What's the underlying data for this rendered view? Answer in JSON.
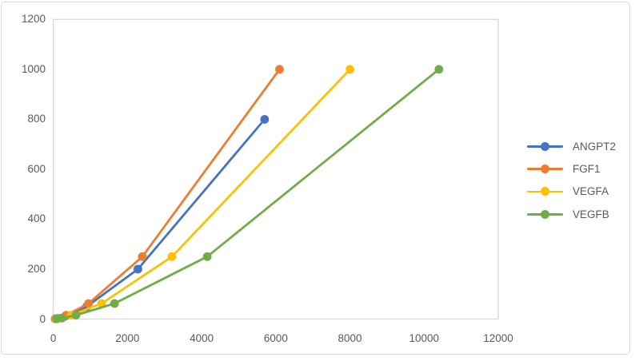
{
  "colors": {
    "chart_border": "#d9d9d9",
    "plot_border": "#d9d9d9",
    "tick_label": "#595959",
    "background": "#ffffff"
  },
  "legend": {
    "position": "right",
    "items": [
      "ANGPT2",
      "FGF1",
      "VEGFA",
      "VEGFB"
    ]
  },
  "chart_data": {
    "type": "line",
    "title": "",
    "xlabel": "",
    "ylabel": "",
    "xlim": [
      0,
      12000
    ],
    "ylim": [
      0,
      1200
    ],
    "x_ticks": [
      "0",
      "2000",
      "4000",
      "6000",
      "8000",
      "10000",
      "12000"
    ],
    "y_ticks": [
      "0",
      "200",
      "400",
      "600",
      "800",
      "1000",
      "1200"
    ],
    "grid": false,
    "legend_position": "right",
    "marker": "circle",
    "series": [
      {
        "name": "ANGPT2",
        "color": "#4472C4",
        "points": [
          [
            50,
            0.8
          ],
          [
            130,
            3.1
          ],
          [
            330,
            12.5
          ],
          [
            900,
            50
          ],
          [
            2280,
            200
          ],
          [
            5700,
            800
          ]
        ]
      },
      {
        "name": "FGF1",
        "color": "#ED7D31",
        "points": [
          [
            55,
            1
          ],
          [
            140,
            3.9
          ],
          [
            350,
            15.6
          ],
          [
            950,
            62.5
          ],
          [
            2400,
            250
          ],
          [
            6100,
            1000
          ]
        ]
      },
      {
        "name": "VEGFA",
        "color": "#FFC000",
        "points": [
          [
            75,
            1
          ],
          [
            190,
            3.9
          ],
          [
            480,
            15.6
          ],
          [
            1300,
            62.5
          ],
          [
            3200,
            250
          ],
          [
            8000,
            1000
          ]
        ]
      },
      {
        "name": "VEGFB",
        "color": "#70AD47",
        "points": [
          [
            90,
            1
          ],
          [
            230,
            3.9
          ],
          [
            610,
            15.6
          ],
          [
            1650,
            62.5
          ],
          [
            4150,
            250
          ],
          [
            10400,
            1000
          ]
        ]
      }
    ]
  }
}
